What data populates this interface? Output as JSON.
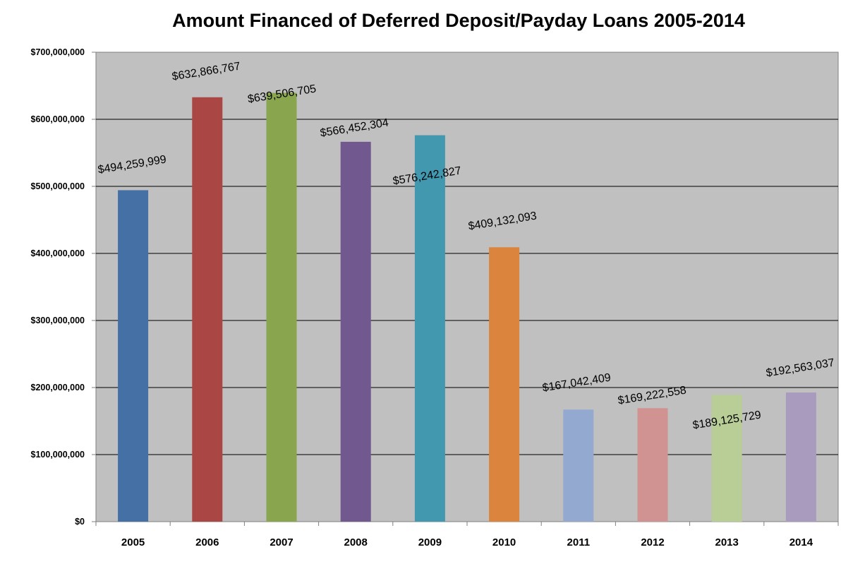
{
  "chart_data": {
    "type": "bar",
    "title": "Amount Financed of Deferred Deposit/Payday Loans 2005-2014",
    "xlabel": "",
    "ylabel": "",
    "categories": [
      "2005",
      "2006",
      "2007",
      "2008",
      "2009",
      "2010",
      "2011",
      "2012",
      "2013",
      "2014"
    ],
    "values": [
      494259999,
      632866767,
      639506705,
      566452304,
      576242827,
      409132093,
      167042409,
      169222558,
      189125729,
      192563037
    ],
    "data_labels": [
      "$494,259,999",
      "$632,866,767",
      "$639,506,705",
      "$566,452,304",
      "$576,242,827",
      "$409,132,093",
      "$167,042,409",
      "$169,222,558",
      "$189,125,729",
      "$192,563,037"
    ],
    "yticks": [
      0,
      100000000,
      200000000,
      300000000,
      400000000,
      500000000,
      600000000,
      700000000
    ],
    "ytick_labels": [
      "$0",
      "$100,000,000",
      "$200,000,000",
      "$300,000,000",
      "$400,000,000",
      "$500,000,000",
      "$600,000,000",
      "$700,000,000"
    ],
    "ylim": [
      0,
      700000000
    ],
    "grid": true,
    "legend": "none",
    "plot_background": "#c0c0c0",
    "gridline_color": "#000000",
    "bar_colors": [
      "#4470a6",
      "#aa4643",
      "#89a54e",
      "#71588f",
      "#4198af",
      "#db843d",
      "#93a9cf",
      "#d19392",
      "#b9cd96",
      "#a99bbd"
    ]
  }
}
